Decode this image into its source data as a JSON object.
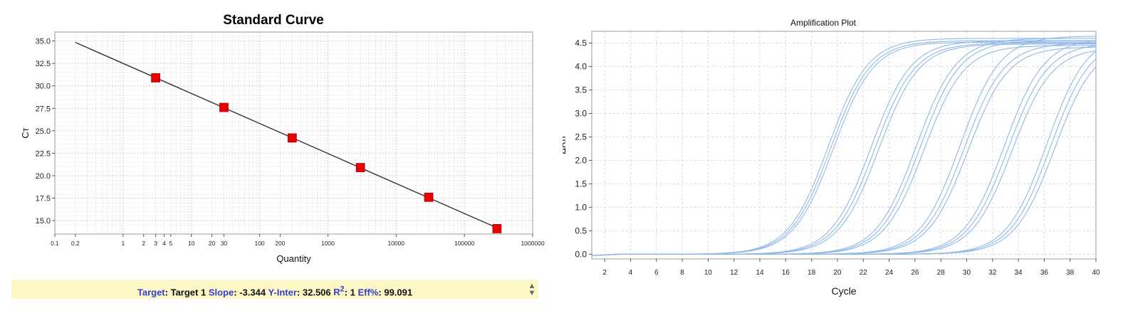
{
  "chart_data": [
    {
      "type": "scatter",
      "title": "Standard Curve",
      "xlabel": "Quantity",
      "ylabel": "Cт",
      "x_scale": "log",
      "xlim": [
        0.1,
        1000000
      ],
      "ylim": [
        13.5,
        36
      ],
      "x_ticks": [
        {
          "value": 0.1,
          "label": "0.1"
        },
        {
          "value": 0.2,
          "label": "0.2"
        },
        {
          "value": 1,
          "label": "1"
        },
        {
          "value": 2,
          "label": "2"
        },
        {
          "value": 3,
          "label": "3"
        },
        {
          "value": 4,
          "label": "4"
        },
        {
          "value": 5,
          "label": "5"
        },
        {
          "value": 10,
          "label": "10"
        },
        {
          "value": 20,
          "label": "20"
        },
        {
          "value": 30,
          "label": "30"
        },
        {
          "value": 100,
          "label": "100"
        },
        {
          "value": 200,
          "label": "200"
        },
        {
          "value": 1000,
          "label": "1000"
        },
        {
          "value": 10000,
          "label": "10000"
        },
        {
          "value": 100000,
          "label": "100000"
        },
        {
          "value": 1000000,
          "label": "1000000"
        }
      ],
      "y_ticks": [
        "15.0",
        "17.5",
        "20.0",
        "22.5",
        "25.0",
        "27.5",
        "30.0",
        "32.5",
        "35.0"
      ],
      "grid": true,
      "series": [
        {
          "x": [
            3,
            30,
            300,
            3000,
            30000,
            300000
          ],
          "y": [
            30.9,
            27.6,
            24.2,
            20.9,
            17.6,
            14.1
          ],
          "color": "#e60000"
        }
      ],
      "fit_line": {
        "x": [
          0.2,
          300000
        ],
        "y": [
          34.84,
          14.19
        ],
        "color": "#333333"
      }
    },
    {
      "type": "line",
      "title": "Amplification Plot",
      "xlabel": "Cycle",
      "ylabel": "ΔRn",
      "xlim": [
        1,
        40
      ],
      "ylim": [
        -0.1,
        4.75
      ],
      "x_ticks": [
        2,
        4,
        6,
        8,
        10,
        12,
        14,
        16,
        18,
        20,
        22,
        24,
        26,
        28,
        30,
        32,
        34,
        36,
        38,
        40
      ],
      "y_ticks": [
        "0.0",
        "0.5",
        "1.0",
        "1.5",
        "2.0",
        "2.5",
        "3.0",
        "3.5",
        "4.0",
        "4.5"
      ],
      "grid": true,
      "series_color": "#8fb8e8",
      "series": [
        {
          "midpoint": 19.3,
          "plateau": 4.6
        },
        {
          "midpoint": 19.5,
          "plateau": 4.55
        },
        {
          "midpoint": 19.7,
          "plateau": 4.52
        },
        {
          "midpoint": 22.6,
          "plateau": 4.55
        },
        {
          "midpoint": 22.9,
          "plateau": 4.5
        },
        {
          "midpoint": 23.2,
          "plateau": 4.48
        },
        {
          "midpoint": 26.1,
          "plateau": 4.6
        },
        {
          "midpoint": 26.4,
          "plateau": 4.55
        },
        {
          "midpoint": 26.7,
          "plateau": 4.45
        },
        {
          "midpoint": 29.5,
          "plateau": 4.65
        },
        {
          "midpoint": 29.8,
          "plateau": 4.5
        },
        {
          "midpoint": 30.1,
          "plateau": 4.42
        },
        {
          "midpoint": 32.9,
          "plateau": 4.6
        },
        {
          "midpoint": 33.2,
          "plateau": 4.5
        },
        {
          "midpoint": 33.5,
          "plateau": 4.4
        },
        {
          "midpoint": 36.2,
          "plateau": 4.7
        },
        {
          "midpoint": 36.5,
          "plateau": 4.6
        },
        {
          "midpoint": 36.8,
          "plateau": 4.5
        }
      ]
    }
  ],
  "stats": {
    "target_label": "Target",
    "target_value": "Target 1",
    "slope_label": "Slope",
    "slope_value": "-3.344",
    "yinter_label": "Y-Inter",
    "yinter_value": "32.506",
    "r2_label": "R",
    "r2_sup": "2",
    "r2_value": "1",
    "eff_label": "Eff%",
    "eff_value": "99.091"
  },
  "scroll": {
    "up": "▲",
    "down": "▼"
  }
}
